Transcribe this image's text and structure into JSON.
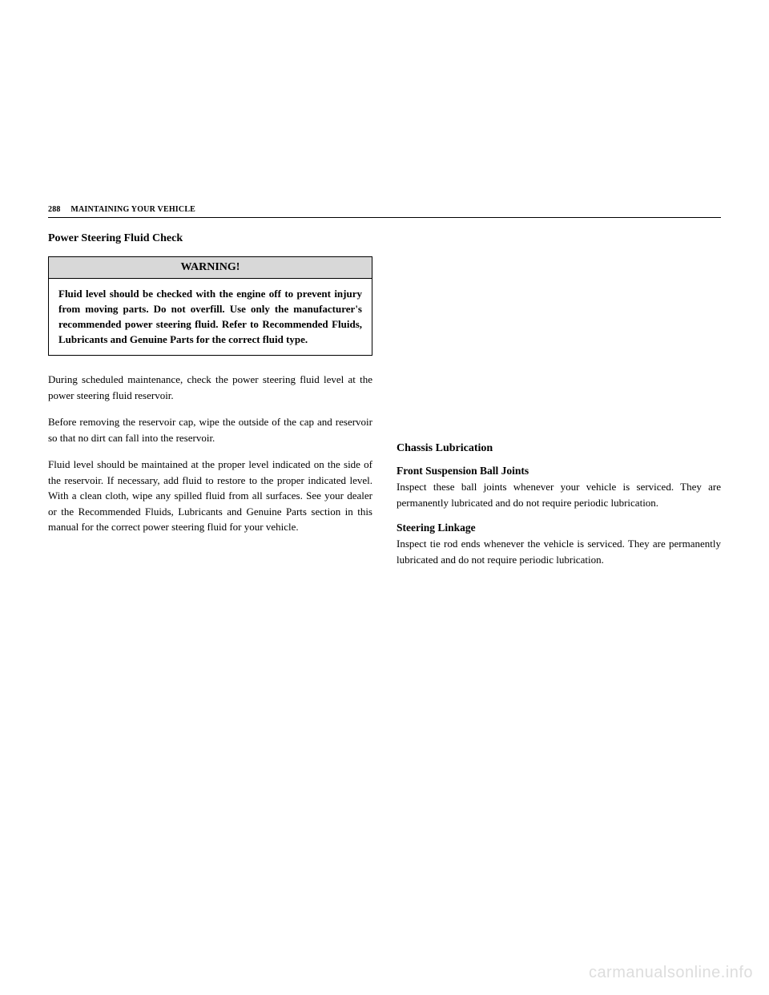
{
  "page": {
    "number": "288",
    "sectionHeader": "MAINTAINING YOUR VEHICLE"
  },
  "left": {
    "title": "Power Steering Fluid Check",
    "warning": {
      "header": "WARNING!",
      "body": "Fluid level should be checked with the engine off to prevent injury from moving parts. Do not overfill. Use only the manufacturer's recommended power steering fluid. Refer to Recommended Fluids, Lubricants and Genuine Parts for the correct fluid type."
    },
    "p1": "During scheduled maintenance, check the power steering fluid level at the power steering fluid reservoir.",
    "p2": "Before removing the reservoir cap, wipe the outside of the cap and reservoir so that no dirt can fall into the reservoir.",
    "p3": "Fluid level should be maintained at the proper level indicated on the side of the reservoir. If necessary, add fluid to restore to the proper indicated level. With a clean cloth, wipe any spilled fluid from all surfaces. See your dealer or the Recommended Fluids, Lubricants and Genuine Parts section in this manual for the correct power steering fluid for your vehicle."
  },
  "right": {
    "title": "Chassis Lubrication",
    "sub1Title": "Front Suspension Ball Joints",
    "sub1Body": "Inspect these ball joints whenever your vehicle is serviced. They are permanently lubricated and do not require periodic lubrication.",
    "sub2Title": "Steering Linkage",
    "sub2Body": "Inspect tie rod ends whenever the vehicle is serviced. They are permanently lubricated and do not require periodic lubrication."
  },
  "watermark": "carmanualsonline.info"
}
